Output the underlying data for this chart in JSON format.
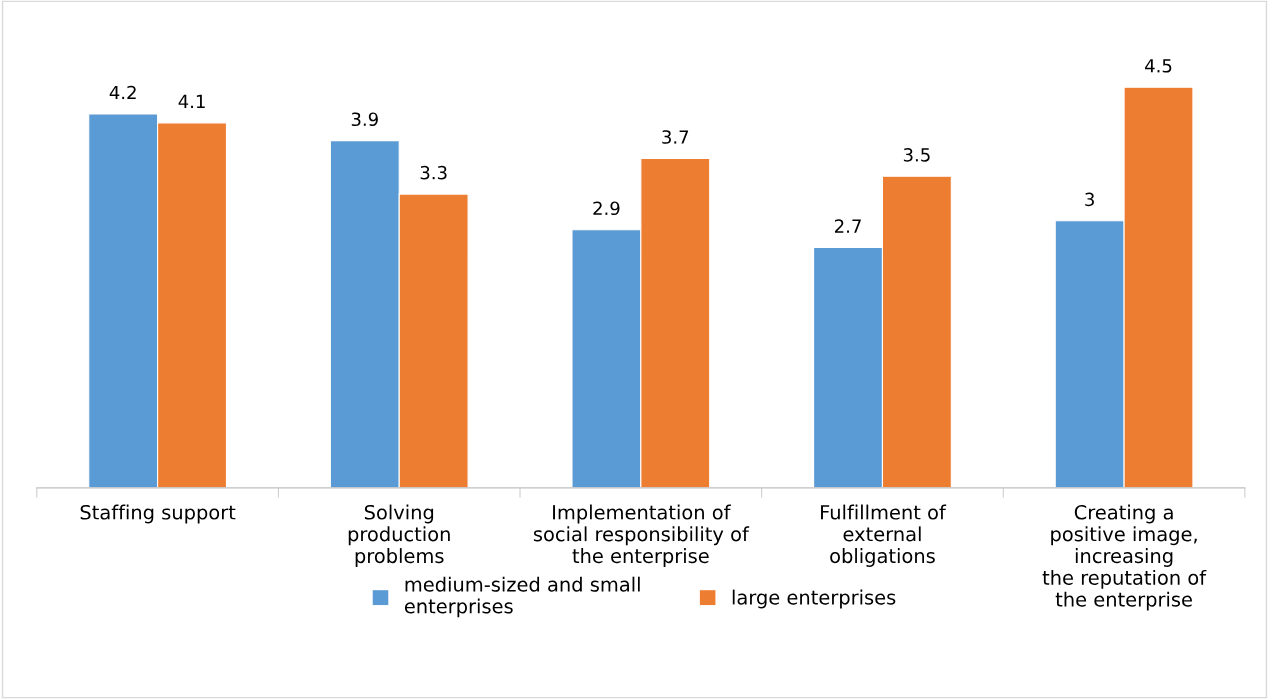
{
  "chart_data": {
    "type": "bar",
    "categories": [
      "Staffing support",
      "Solving\nproduction\nproblems",
      "Implementation of\nsocial responsibility of\nthe enterprise",
      "Fulfillment of\nexternal\nobligations",
      "Creating a\npositive image,\nincreasing\nthe reputation of\nthe enterprise"
    ],
    "series": [
      {
        "name": "medium-sized and small\nenterprises",
        "color": "#5b9bd5",
        "values": [
          4.2,
          3.9,
          2.9,
          2.7,
          3
        ]
      },
      {
        "name": "large enterprises",
        "color": "#ed7d31",
        "values": [
          4.1,
          3.3,
          3.7,
          3.5,
          4.5
        ]
      }
    ],
    "tick_labels": "x",
    "data_labels": true,
    "legend": "bottom",
    "grid": false
  }
}
